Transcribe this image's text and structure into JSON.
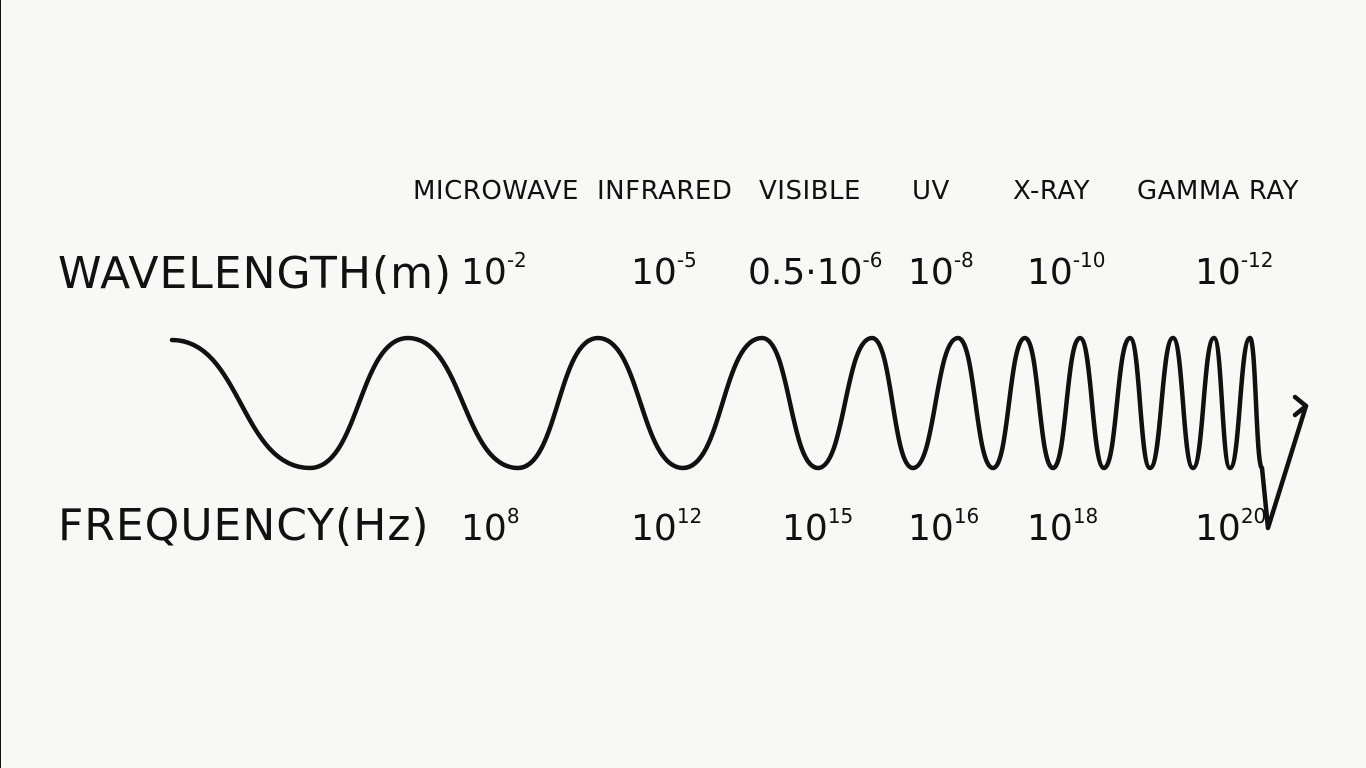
{
  "bands": [
    "MICROWAVE",
    "INFRARED",
    "VISIBLE",
    "UV",
    "X-RAY",
    "GAMMA RAY"
  ],
  "wavelength": {
    "label": "WAVELENGTH(m)",
    "values": [
      {
        "mantissa": "10",
        "exponent": "-2"
      },
      {
        "mantissa": "10",
        "exponent": "-5"
      },
      {
        "mantissa": "0.5·10",
        "exponent": "-6"
      },
      {
        "mantissa": "10",
        "exponent": "-8"
      },
      {
        "mantissa": "10",
        "exponent": "-10"
      },
      {
        "mantissa": "10",
        "exponent": "-12"
      }
    ]
  },
  "frequency": {
    "label": "FREQUENCY(Hz)",
    "values": [
      {
        "mantissa": "10",
        "exponent": "8"
      },
      {
        "mantissa": "10",
        "exponent": "12"
      },
      {
        "mantissa": "10",
        "exponent": "15"
      },
      {
        "mantissa": "10",
        "exponent": "16"
      },
      {
        "mantissa": "10",
        "exponent": "18"
      },
      {
        "mantissa": "10",
        "exponent": "20"
      }
    ]
  },
  "colors": {
    "ink": "#111111",
    "background": "#f8f8f6"
  }
}
